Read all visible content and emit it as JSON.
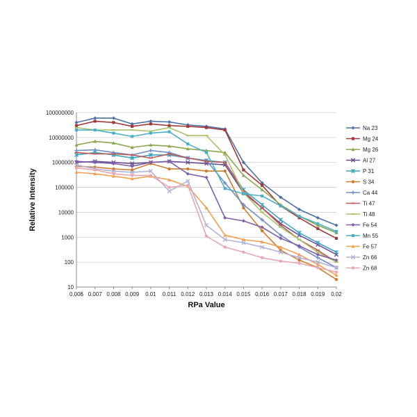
{
  "chart_data": {
    "type": "line",
    "xlabel": "RPa Value",
    "ylabel": "Relative Intensity",
    "y_scale": "log",
    "ylim": [
      10,
      100000000
    ],
    "y_ticks": [
      "10",
      "100",
      "1000",
      "10000",
      "100000",
      "1000000",
      "10000000",
      "100000000"
    ],
    "x": [
      "0.006",
      "0.007",
      "0.008",
      "0.009",
      "0.01",
      "0.011",
      "0.012",
      "0.013",
      "0.014",
      "0.015",
      "0.016",
      "0.017",
      "0.018",
      "0.019",
      "0.02"
    ],
    "grid": "horizontal",
    "legend_position": "right",
    "series": [
      {
        "name": "Na 23",
        "color": "#4f6fa6",
        "marker": "diamond",
        "values": [
          40000000,
          60000000,
          60000000,
          35000000,
          45000000,
          42000000,
          32000000,
          28000000,
          22000000,
          1000000,
          150000,
          40000,
          13000,
          6000,
          3000
        ]
      },
      {
        "name": "Mg 24",
        "color": "#a03a3a",
        "marker": "square",
        "values": [
          30000000,
          45000000,
          40000000,
          28000000,
          35000000,
          30000000,
          28000000,
          25000000,
          20000000,
          500000,
          120000,
          18000,
          6000,
          2200,
          900
        ]
      },
      {
        "name": "Mg 26",
        "color": "#8aa64e",
        "marker": "triangle",
        "values": [
          5000000,
          7000000,
          6000000,
          4000000,
          5000000,
          4500000,
          3500000,
          3000000,
          2500000,
          300000,
          80000,
          20000,
          7000,
          3000,
          1500
        ]
      },
      {
        "name": "Al 27",
        "color": "#6a4e94",
        "marker": "x",
        "values": [
          1000000,
          1100000,
          1000000,
          900000,
          1000000,
          1100000,
          1000000,
          900000,
          800000,
          60000,
          15000,
          3500,
          1200,
          500,
          200
        ]
      },
      {
        "name": "P 31",
        "color": "#3fa6c0",
        "marker": "star",
        "values": [
          2000000,
          2500000,
          2000000,
          1500000,
          2000000,
          2000000,
          1500000,
          1200000,
          1000000,
          80000,
          20000,
          5000,
          1500,
          600,
          250
        ]
      },
      {
        "name": "S 34",
        "color": "#d07d2e",
        "marker": "circle",
        "values": [
          700000,
          650000,
          550000,
          500000,
          900000,
          550000,
          550000,
          450000,
          450000,
          15000,
          1800,
          300,
          120,
          60,
          20
        ]
      },
      {
        "name": "Ca 44",
        "color": "#6f8fc4",
        "marker": "plus",
        "values": [
          3000000,
          3200000,
          2500000,
          2000000,
          3000000,
          2500000,
          1500000,
          1200000,
          150000,
          20000,
          5000,
          1200,
          400,
          150,
          60
        ]
      },
      {
        "name": "Ti 47",
        "color": "#c25a5a",
        "marker": "dash",
        "values": [
          2500000,
          2200000,
          2200000,
          2000000,
          1500000,
          2200000,
          1500000,
          1100000,
          1000000,
          70000,
          15000,
          3000,
          800,
          300,
          100
        ]
      },
      {
        "name": "Ti 48",
        "color": "#a9c46a",
        "marker": "dash",
        "values": [
          25000000,
          20000000,
          20000000,
          20000000,
          18000000,
          25000000,
          12000000,
          12000000,
          2000000,
          60000,
          10000,
          2500,
          800,
          250,
          100
        ]
      },
      {
        "name": "Fe 54",
        "color": "#7e5fa8",
        "marker": "diamond",
        "values": [
          1100000,
          1000000,
          900000,
          700000,
          1000000,
          1100000,
          350000,
          250000,
          6000,
          4500,
          2500,
          900,
          450,
          200,
          120
        ]
      },
      {
        "name": "Mn 55",
        "color": "#4ab0c8",
        "marker": "square",
        "values": [
          20000000,
          20000000,
          15000000,
          11000000,
          15000000,
          17000000,
          5500000,
          2500000,
          90000,
          55000,
          45000,
          18000,
          7000,
          3500,
          1700
        ]
      },
      {
        "name": "Fe 57",
        "color": "#f0a050",
        "marker": "triangle",
        "values": [
          400000,
          350000,
          280000,
          220000,
          280000,
          200000,
          110000,
          15000,
          1200,
          800,
          650,
          400,
          200,
          80,
          30
        ]
      },
      {
        "name": "Zn 66",
        "color": "#b0b3d8",
        "marker": "x",
        "values": [
          800000,
          550000,
          450000,
          400000,
          450000,
          70000,
          180000,
          3000,
          800,
          600,
          400,
          250,
          150,
          100,
          60
        ]
      },
      {
        "name": "Zn 68",
        "color": "#e8a8b0",
        "marker": "circle",
        "values": [
          600000,
          500000,
          350000,
          300000,
          300000,
          100000,
          120000,
          1100,
          400,
          250,
          150,
          110,
          90,
          60,
          40
        ]
      }
    ]
  }
}
